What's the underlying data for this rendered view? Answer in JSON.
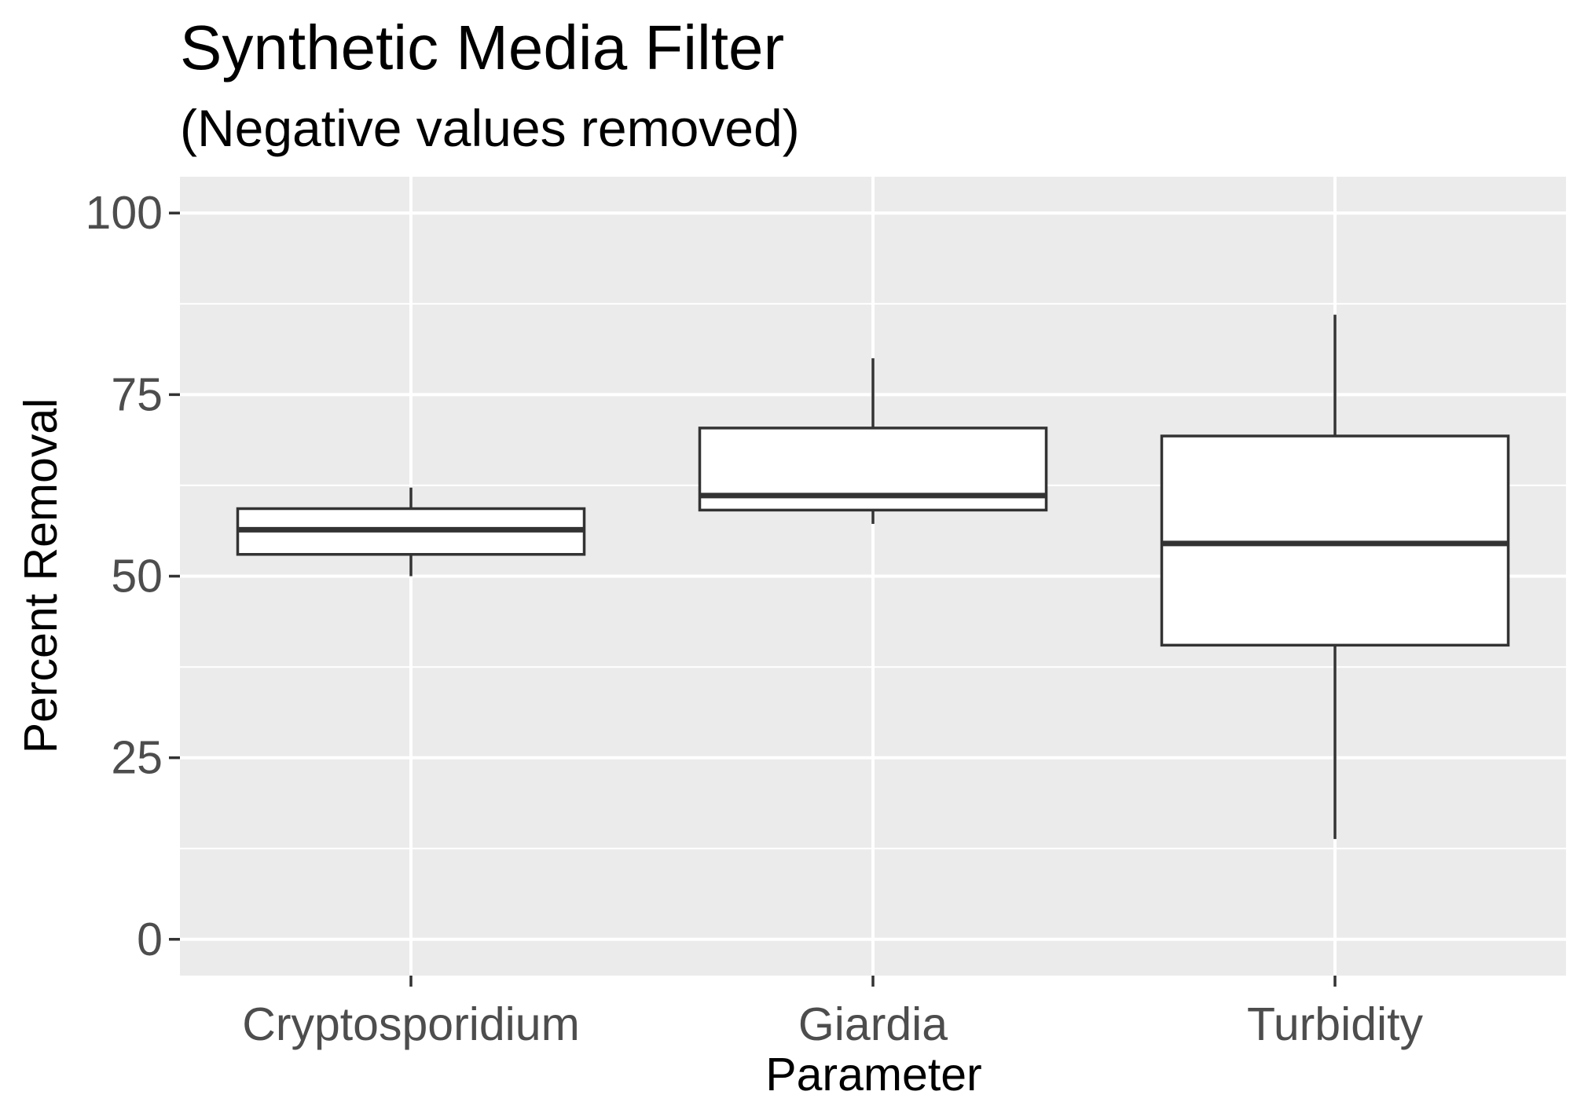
{
  "chart_data": {
    "type": "boxplot",
    "title": "Synthetic Media Filter",
    "subtitle": "(Negative values removed)",
    "xlabel": "Parameter",
    "ylabel": "Percent Removal",
    "categories": [
      "Cryptosporidium",
      "Giardia",
      "Turbidity"
    ],
    "boxes": [
      {
        "category": "Cryptosporidium",
        "whisker_low": 50,
        "q1": 53,
        "median": 56.4,
        "q3": 59.3,
        "whisker_high": 62.2
      },
      {
        "category": "Giardia",
        "whisker_low": 57.2,
        "q1": 59.1,
        "median": 61.1,
        "q3": 70.4,
        "whisker_high": 80
      },
      {
        "category": "Turbidity",
        "whisker_low": 13.8,
        "q1": 40.5,
        "median": 54.5,
        "q3": 69.3,
        "whisker_high": 86
      }
    ],
    "ylim": [
      -5,
      105
    ],
    "y_ticks": [
      0,
      25,
      50,
      75,
      100
    ],
    "y_tick_labels": [
      "0",
      "25",
      "50",
      "75",
      "100"
    ],
    "grid": true,
    "legend": "none",
    "colors": {
      "panel_background": "#EBEBEB",
      "gridline": "#FFFFFF",
      "box_fill": "#FFFFFF",
      "box_stroke": "#333333",
      "tick_text": "#4D4D4D",
      "tick_mark": "#333333",
      "title_text": "#000000"
    }
  }
}
